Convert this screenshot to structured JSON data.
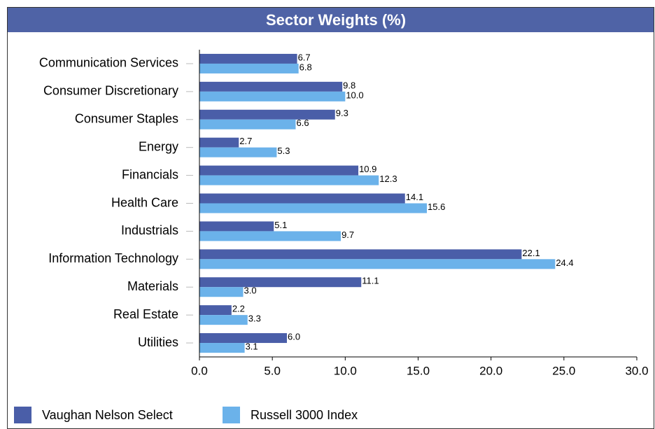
{
  "chart_data": {
    "type": "hbar",
    "title": "Sector Weights (%)",
    "categories": [
      "Communication Services",
      "Consumer Discretionary",
      "Consumer Staples",
      "Energy",
      "Financials",
      "Health Care",
      "Industrials",
      "Information Technology",
      "Materials",
      "Real Estate",
      "Utilities"
    ],
    "series": [
      {
        "name": "Vaughan Nelson Select",
        "color": "#4a5ea8",
        "values": [
          6.7,
          9.8,
          9.3,
          2.7,
          10.9,
          14.1,
          5.1,
          22.1,
          11.1,
          2.2,
          6.0
        ],
        "value_labels": [
          "6.7",
          "9.8",
          "9.3",
          "2.7",
          "10.9",
          "14.1",
          "5.1",
          "22.1",
          "11.1",
          "2.2",
          "6.0"
        ]
      },
      {
        "name": "Russell 3000 Index",
        "color": "#6bb2ea",
        "values": [
          6.8,
          10.0,
          6.6,
          5.3,
          12.3,
          15.6,
          9.7,
          24.4,
          3.0,
          3.3,
          3.1
        ],
        "value_labels": [
          "6.8",
          "10.0",
          "6.6",
          "5.3",
          "12.3",
          "15.6",
          "9.7",
          "24.4",
          "3.0",
          "3.3",
          "3.1"
        ]
      }
    ],
    "xlim": [
      0,
      30
    ],
    "xticks": [
      {
        "value": 0,
        "label": "0.0"
      },
      {
        "value": 5,
        "label": "5.0"
      },
      {
        "value": 10,
        "label": "10.0"
      },
      {
        "value": 15,
        "label": "15.0"
      },
      {
        "value": 20,
        "label": "20.0"
      },
      {
        "value": 25,
        "label": "25.0"
      },
      {
        "value": 30,
        "label": "30.0"
      }
    ]
  }
}
